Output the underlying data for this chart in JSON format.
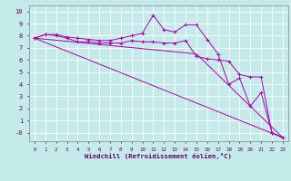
{
  "xlabel": "Windchill (Refroidissement éolien,°C)",
  "background_color": "#c5eaea",
  "line_color": "#aa00aa",
  "grid_color": "#ffffff",
  "xlim": [
    -0.5,
    23.5
  ],
  "ylim": [
    -0.7,
    10.5
  ],
  "xticks": [
    0,
    1,
    2,
    3,
    4,
    5,
    6,
    7,
    8,
    9,
    10,
    11,
    12,
    13,
    14,
    15,
    16,
    17,
    18,
    19,
    20,
    21,
    22,
    23
  ],
  "yticks": [
    0,
    1,
    2,
    3,
    4,
    5,
    6,
    7,
    8,
    9,
    10
  ],
  "ytick_labels": [
    "-0",
    "1",
    "2",
    "3",
    "4",
    "5",
    "6",
    "7",
    "8",
    "9",
    "10"
  ],
  "series1_x": [
    0,
    1,
    2,
    3,
    4,
    5,
    6,
    7,
    8,
    9,
    10,
    11,
    12,
    13,
    14,
    15,
    16,
    17,
    18,
    19,
    20,
    21,
    22,
    23
  ],
  "series1_y": [
    7.8,
    8.1,
    8.1,
    7.9,
    7.8,
    7.7,
    7.6,
    7.6,
    7.8,
    8.0,
    8.2,
    9.7,
    8.5,
    8.3,
    8.9,
    8.9,
    7.7,
    6.5,
    4.0,
    4.5,
    2.2,
    3.3,
    0.0,
    -0.4
  ],
  "series2_x": [
    0,
    1,
    2,
    3,
    4,
    5,
    6,
    7,
    8,
    9,
    10,
    11,
    12,
    13,
    14,
    15,
    16,
    17,
    18,
    19,
    20,
    21,
    22,
    23
  ],
  "series2_y": [
    7.8,
    8.1,
    8.0,
    7.8,
    7.5,
    7.5,
    7.4,
    7.4,
    7.4,
    7.6,
    7.5,
    7.5,
    7.4,
    7.4,
    7.6,
    6.3,
    6.1,
    6.0,
    5.9,
    4.8,
    4.6,
    4.6,
    0.0,
    -0.4
  ],
  "series3_x": [
    0,
    23
  ],
  "series3_y": [
    7.8,
    -0.4
  ],
  "series4_x": [
    0,
    15,
    23
  ],
  "series4_y": [
    7.8,
    6.5,
    -0.4
  ]
}
